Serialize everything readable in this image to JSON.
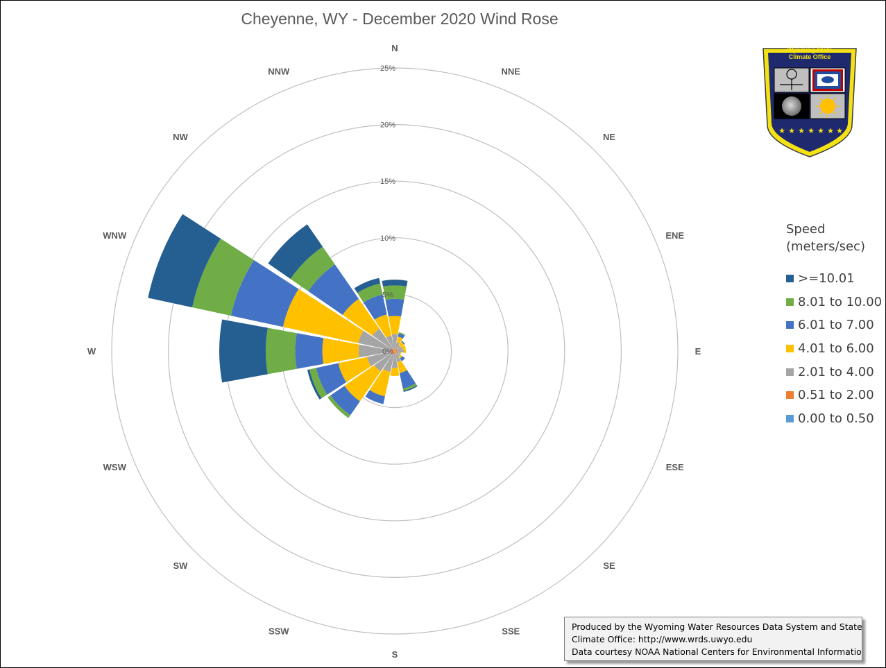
{
  "chart_data": {
    "type": "wind_rose",
    "title": "Cheyenne, WY - December 2020 Wind Rose",
    "directions": [
      "N",
      "NNE",
      "NE",
      "ENE",
      "E",
      "ESE",
      "SE",
      "SSE",
      "S",
      "SSW",
      "SW",
      "WSW",
      "W",
      "WNW",
      "NW",
      "NNW"
    ],
    "radial_axis": {
      "ticks": [
        "0%",
        "5%",
        "10%",
        "15%",
        "20%",
        "25%"
      ],
      "max": 25,
      "unit": "%"
    },
    "legend_title": "Speed (meters/sec)",
    "series": [
      {
        "name": "0.00 to 0.50",
        "color": "#5b9bd5",
        "values": [
          0,
          0,
          0,
          0,
          0,
          0,
          0,
          0,
          0,
          0,
          0,
          0,
          0,
          0,
          0,
          0
        ]
      },
      {
        "name": "0.51 to 2.00",
        "color": "#ed7d31",
        "values": [
          0.3,
          0.2,
          0.2,
          0.2,
          0.2,
          0.2,
          0.2,
          0.2,
          0.3,
          0.3,
          0.3,
          0.4,
          0.4,
          0.3,
          0.2,
          0.2
        ]
      },
      {
        "name": "2.01 to 4.00",
        "color": "#a5a5a5",
        "values": [
          1.2,
          0.6,
          0.4,
          0.5,
          0.6,
          0.3,
          0.4,
          0.8,
          1.2,
          1.6,
          1.9,
          2.1,
          2.8,
          3.0,
          2.2,
          1.2
        ]
      },
      {
        "name": "4.01 to 6.00",
        "color": "#ffc000",
        "values": [
          1.6,
          0.5,
          0.4,
          0.3,
          0.2,
          0.1,
          0.2,
          1.0,
          0.7,
          2.2,
          3.2,
          2.6,
          3.2,
          6.8,
          3.2,
          1.9
        ]
      },
      {
        "name": "6.01 to 7.00",
        "color": "#4472c4",
        "values": [
          1.5,
          0.3,
          0.1,
          0,
          0,
          0,
          0.3,
          1.4,
          0,
          0.7,
          1.5,
          2.0,
          2.4,
          4.7,
          3.7,
          1.8
        ]
      },
      {
        "name": "8.01 to 10.00",
        "color": "#70ad47",
        "values": [
          1.2,
          0.1,
          0,
          0,
          0,
          0,
          0,
          0.2,
          0,
          0,
          0.3,
          0.6,
          2.6,
          3.5,
          1.9,
          1.0
        ]
      },
      {
        "name": ">=10.01",
        "color": "#255e91",
        "values": [
          0.5,
          0,
          0,
          0,
          0,
          0,
          0,
          0.1,
          0,
          0,
          0,
          0.2,
          4.1,
          4.0,
          2.4,
          0.5
        ]
      }
    ]
  },
  "legend": {
    "title_line1": "Speed",
    "title_line2": "(meters/sec)"
  },
  "logo": {
    "line1": "Wyoming State",
    "line2": "Climate Office"
  },
  "credit": {
    "line1": "Produced by the Wyoming Water Resources Data System and State",
    "line2": "Climate Office: http://www.wrds.uwyo.edu",
    "line3": "Data courtesy NOAA National Centers for Environmental Information"
  }
}
